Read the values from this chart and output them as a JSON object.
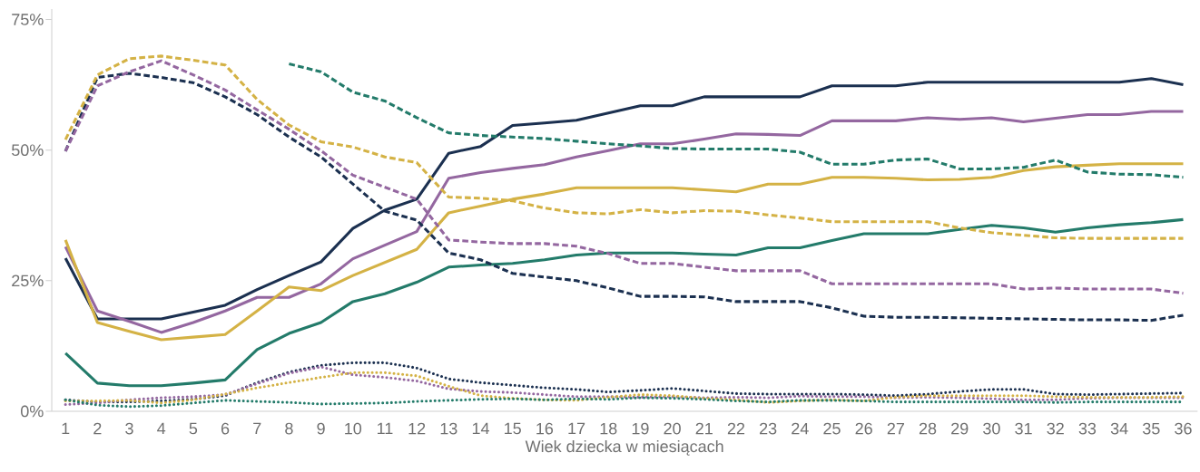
{
  "chart_data": {
    "type": "line",
    "xlabel": "Wiek dziecka w miesiącach",
    "categories": [
      "1",
      "2",
      "3",
      "4",
      "5",
      "6",
      "7",
      "8",
      "9",
      "10",
      "11",
      "12",
      "13",
      "14",
      "15",
      "16",
      "17",
      "18",
      "19",
      "20",
      "21",
      "22",
      "23",
      "24",
      "25",
      "26",
      "27",
      "28",
      "29",
      "30",
      "31",
      "32",
      "33",
      "34",
      "35",
      "36"
    ],
    "ylim": [
      0,
      77
    ],
    "yticks": [
      {
        "value": 0,
        "label": "0%"
      },
      {
        "value": 25,
        "label": "25%"
      },
      {
        "value": 50,
        "label": "50%"
      },
      {
        "value": 75,
        "label": "75%"
      }
    ],
    "grid": false,
    "marker": "none",
    "series": [
      {
        "color": "#1b3050",
        "line_style": "solid",
        "values": [
          29.3,
          17.7,
          17.7,
          17.7,
          19,
          20.3,
          23.3,
          26,
          28.6,
          35,
          38.5,
          40.6,
          49.4,
          50.7,
          54.7,
          55.2,
          55.7,
          57.1,
          58.5,
          58.5,
          60.2,
          60.2,
          60.2,
          60.2,
          62.3,
          62.3,
          62.3,
          63,
          63,
          63,
          63,
          63,
          63,
          63,
          63.7,
          62.5
        ]
      },
      {
        "color": "#9467a0",
        "line_style": "solid",
        "values": [
          31.5,
          19.2,
          17.2,
          15.1,
          17,
          19.2,
          21.8,
          21.8,
          24.4,
          29.2,
          31.8,
          34.4,
          44.6,
          45.7,
          46.5,
          47.2,
          48.7,
          49.9,
          51.2,
          51.2,
          52.1,
          53.1,
          53,
          52.8,
          55.6,
          55.6,
          55.6,
          56.2,
          55.9,
          56.2,
          55.4,
          56.1,
          56.8,
          56.8,
          57.4,
          57.4
        ]
      },
      {
        "color": "#d4b245",
        "line_style": "solid",
        "values": [
          32.8,
          17,
          15.3,
          13.7,
          14.2,
          14.7,
          19.2,
          23.8,
          23.1,
          26,
          28.5,
          31,
          38,
          39.3,
          40.6,
          41.6,
          42.8,
          42.8,
          42.8,
          42.8,
          42.4,
          42,
          43.5,
          43.5,
          44.8,
          44.8,
          44.6,
          44.3,
          44.4,
          44.8,
          46.1,
          46.8,
          47.1,
          47.4,
          47.4,
          47.4
        ]
      },
      {
        "color": "#237b6a",
        "line_style": "solid",
        "values": [
          11.1,
          5.4,
          4.9,
          4.9,
          5.4,
          6,
          11.8,
          14.9,
          17,
          21,
          22.5,
          24.7,
          27.6,
          28,
          28.3,
          29,
          29.9,
          30.3,
          30.3,
          30.3,
          30.1,
          29.9,
          31.3,
          31.3,
          32.7,
          34,
          34,
          34,
          34.8,
          35.6,
          35.1,
          34.3,
          35.1,
          35.7,
          36.1,
          36.7
        ]
      },
      {
        "color": "#1b3050",
        "line_style": "dashed",
        "values": [
          49.8,
          63.9,
          64.7,
          63.9,
          62.9,
          60.2,
          56.8,
          52.5,
          48.7,
          43.5,
          38.3,
          36.6,
          30.3,
          29,
          26.4,
          25.7,
          25,
          23.6,
          22,
          22,
          21.9,
          21,
          21,
          21,
          19.8,
          18.2,
          18,
          18,
          17.9,
          17.8,
          17.7,
          17.6,
          17.5,
          17.5,
          17.4,
          18.4
        ]
      },
      {
        "color": "#9467a0",
        "line_style": "dashed",
        "values": [
          49.8,
          62.3,
          65,
          67.1,
          64.4,
          61.5,
          57.7,
          54,
          49.9,
          45.2,
          42.9,
          40.6,
          32.8,
          32.4,
          32.1,
          32.1,
          31.6,
          30.2,
          28.3,
          28.3,
          27.6,
          26.9,
          26.9,
          26.9,
          24.4,
          24.4,
          24.4,
          24.4,
          24.4,
          24.4,
          23.4,
          23.6,
          23.4,
          23.4,
          23.4,
          22.6
        ]
      },
      {
        "color": "#d4b245",
        "line_style": "dashed",
        "values": [
          52,
          64.4,
          67.5,
          68,
          67.2,
          66.3,
          59.7,
          54.8,
          51.6,
          50.6,
          48.7,
          47.6,
          41,
          40.8,
          40.3,
          38.9,
          38,
          37.8,
          38.6,
          38,
          38.4,
          38.3,
          37.6,
          37,
          36.3,
          36.3,
          36.3,
          36.3,
          35.1,
          34.2,
          33.7,
          33.2,
          33.1,
          33.1,
          33.1,
          33.1
        ]
      },
      {
        "color": "#237b6a",
        "line_style": "dashed",
        "values": [
          null,
          null,
          null,
          null,
          null,
          null,
          null,
          66.5,
          65,
          61.1,
          59.4,
          56.2,
          53.3,
          52.8,
          52.5,
          52.2,
          51.7,
          51.2,
          50.8,
          50.3,
          50.2,
          50.2,
          50.2,
          49.6,
          47.3,
          47.3,
          48.1,
          48.3,
          46.4,
          46.4,
          46.7,
          48.1,
          45.8,
          45.4,
          45.3,
          44.8
        ]
      },
      {
        "color": "#1b3050",
        "line_style": "dotted",
        "values": [
          2.2,
          1.8,
          1.8,
          2,
          2.3,
          3,
          5.5,
          7.5,
          8.8,
          9.3,
          9.3,
          8.3,
          6.2,
          5.5,
          5,
          4.5,
          4.2,
          3.7,
          4,
          4.4,
          3.9,
          3.4,
          3.3,
          3.3,
          3.3,
          3.2,
          3,
          3.3,
          3.8,
          4.2,
          4.2,
          3.3,
          3.2,
          3.3,
          3.4,
          3.5
        ]
      },
      {
        "color": "#9467a0",
        "line_style": "dotted",
        "values": [
          1.3,
          1.6,
          2.2,
          2.6,
          2.8,
          3.2,
          5.3,
          7.3,
          8.5,
          7,
          6.5,
          5.8,
          4.3,
          3.8,
          3.6,
          3.2,
          2.8,
          2.8,
          2.7,
          2.8,
          2.6,
          2.7,
          2.6,
          2.9,
          2.8,
          2.8,
          2.6,
          2.7,
          2.6,
          2.4,
          2.2,
          2.2,
          2.5,
          2.6,
          2.6,
          2.6
        ]
      },
      {
        "color": "#d4b245",
        "line_style": "dotted",
        "values": [
          2,
          2,
          2.1,
          1.6,
          2.2,
          3.3,
          4.5,
          5.5,
          6.5,
          7.4,
          7.4,
          6.8,
          4.8,
          3,
          2.5,
          2.2,
          2.1,
          2.7,
          3.2,
          3,
          2.5,
          2.2,
          1.7,
          2,
          2.2,
          2,
          2.7,
          3,
          3,
          3,
          3,
          2.8,
          2.7,
          2.7,
          2.7,
          2.8
        ]
      },
      {
        "color": "#237b6a",
        "line_style": "dotted",
        "values": [
          2.2,
          1.2,
          0.9,
          1.1,
          1.6,
          2.1,
          1.9,
          1.7,
          1.4,
          1.5,
          1.6,
          1.9,
          2.1,
          2.3,
          2.4,
          2.2,
          2.4,
          2.3,
          2.6,
          2.5,
          2.3,
          2,
          1.8,
          2.1,
          2.1,
          2,
          1.8,
          1.8,
          1.8,
          1.8,
          1.8,
          1.7,
          1.8,
          1.8,
          1.8,
          1.8
        ]
      }
    ]
  }
}
